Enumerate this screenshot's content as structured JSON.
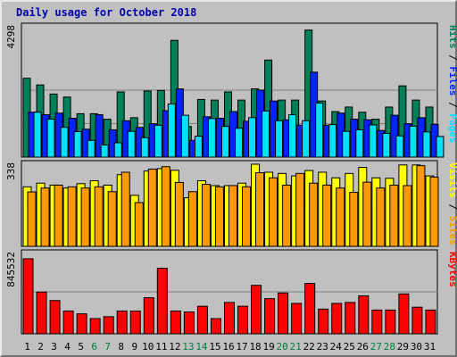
{
  "title": "Daily usage for October 2018",
  "colors": {
    "hits": "#00805a",
    "files": "#0024ff",
    "pages": "#00e0ff",
    "visits": "#ffff00",
    "sites": "#ff9900",
    "kbytes": "#ff0000",
    "weekend_day": "#008040",
    "weekday": "#000080"
  },
  "chart_data": [
    {
      "type": "bar",
      "panel": "top",
      "ymax_label": "4298",
      "ylim": [
        0,
        4298
      ],
      "categories": [
        "1",
        "2",
        "3",
        "4",
        "5",
        "6",
        "7",
        "8",
        "9",
        "10",
        "11",
        "12",
        "13",
        "14",
        "15",
        "16",
        "17",
        "18",
        "19",
        "20",
        "21",
        "22",
        "23",
        "24",
        "25",
        "26",
        "27",
        "28",
        "29",
        "30",
        "31"
      ],
      "weekend_days": [
        "6",
        "7",
        "13",
        "14",
        "20",
        "21",
        "27",
        "28"
      ],
      "legend": [
        {
          "text": "Pages",
          "color": "#00e0ff"
        },
        {
          "text": "Files",
          "color": "#0024ff"
        },
        {
          "text": "Hits",
          "color": "#00805a"
        }
      ],
      "series": [
        {
          "name": "Hits",
          "color": "#00805a",
          "values": [
            2600,
            2380,
            2080,
            1980,
            1430,
            1430,
            1250,
            2150,
            1300,
            2180,
            2200,
            3850,
            1010,
            1900,
            1880,
            2150,
            1880,
            2250,
            3200,
            1880,
            1880,
            4190,
            1850,
            1500,
            1650,
            1480,
            1250,
            1650,
            2350,
            1880,
            1650
          ]
        },
        {
          "name": "Files",
          "color": "#0024ff",
          "values": [
            1480,
            1400,
            1450,
            1280,
            920,
            1400,
            900,
            1200,
            980,
            1100,
            1530,
            2250,
            550,
            1330,
            1280,
            1500,
            1180,
            2210,
            1850,
            1230,
            1050,
            2800,
            1050,
            1450,
            1250,
            1230,
            880,
            1380,
            1100,
            1300,
            1080
          ]
        },
        {
          "name": "Pages",
          "color": "#00e0ff",
          "values": [
            1480,
            1250,
            980,
            840,
            550,
            400,
            470,
            850,
            640,
            1050,
            1750,
            1380,
            690,
            1270,
            1010,
            950,
            1300,
            1520,
            1200,
            1400,
            1200,
            1780,
            1070,
            850,
            900,
            1060,
            780,
            700,
            1020,
            830,
            680
          ]
        }
      ]
    },
    {
      "type": "bar",
      "panel": "middle",
      "ymax_label": "338",
      "ylim": [
        0,
        338
      ],
      "categories": [
        "1",
        "2",
        "3",
        "4",
        "5",
        "6",
        "7",
        "8",
        "9",
        "10",
        "11",
        "12",
        "13",
        "14",
        "15",
        "16",
        "17",
        "18",
        "19",
        "20",
        "21",
        "22",
        "23",
        "24",
        "25",
        "26",
        "27",
        "28",
        "29",
        "30",
        "31"
      ],
      "legend": [
        {
          "text": "Sites",
          "color": "#ff9900"
        },
        {
          "text": "Visits",
          "color": "#ffff00"
        }
      ],
      "series": [
        {
          "name": "Visits",
          "color": "#ffff00",
          "values": [
            245,
            260,
            252,
            240,
            258,
            270,
            252,
            295,
            210,
            310,
            320,
            313,
            200,
            270,
            250,
            250,
            260,
            338,
            305,
            300,
            290,
            312,
            305,
            282,
            300,
            325,
            282,
            280,
            335,
            335,
            290
          ]
        },
        {
          "name": "Sites",
          "color": "#ff9900",
          "values": [
            224,
            240,
            252,
            245,
            240,
            245,
            225,
            305,
            180,
            318,
            328,
            263,
            225,
            255,
            245,
            250,
            245,
            303,
            282,
            252,
            300,
            260,
            252,
            240,
            222,
            264,
            240,
            252,
            250,
            332,
            285
          ]
        }
      ]
    },
    {
      "type": "bar",
      "panel": "bottom",
      "ymax_label": "845532",
      "ylim": [
        0,
        845532
      ],
      "categories": [
        "1",
        "2",
        "3",
        "4",
        "5",
        "6",
        "7",
        "8",
        "9",
        "10",
        "11",
        "12",
        "13",
        "14",
        "15",
        "16",
        "17",
        "18",
        "19",
        "20",
        "21",
        "22",
        "23",
        "24",
        "25",
        "26",
        "27",
        "28",
        "29",
        "30",
        "31"
      ],
      "legend": [
        {
          "text": "KBytes",
          "color": "#ff0000"
        }
      ],
      "series": [
        {
          "name": "KBytes",
          "color": "#ff0000",
          "values": [
            790000,
            440000,
            350000,
            240000,
            210000,
            160000,
            180000,
            240000,
            240000,
            380000,
            690000,
            240000,
            230000,
            290000,
            160000,
            330000,
            290000,
            510000,
            370000,
            430000,
            320000,
            530000,
            260000,
            320000,
            330000,
            400000,
            250000,
            250000,
            420000,
            280000,
            250000
          ]
        }
      ]
    }
  ]
}
